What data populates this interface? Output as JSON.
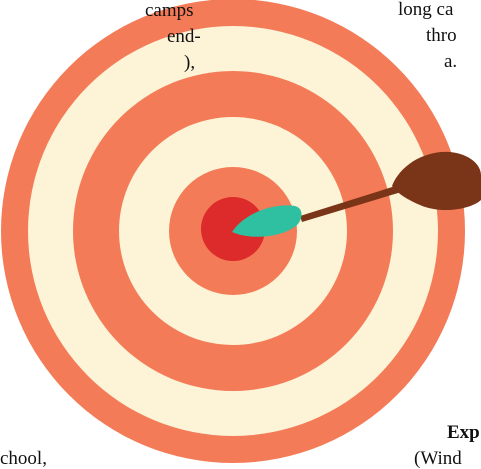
{
  "text_fragments": [
    "camps",
    "end-",
    "),",
    "long ca",
    "thro",
    "a.",
    "Exp",
    "(Wind",
    "chool,"
  ]
}
